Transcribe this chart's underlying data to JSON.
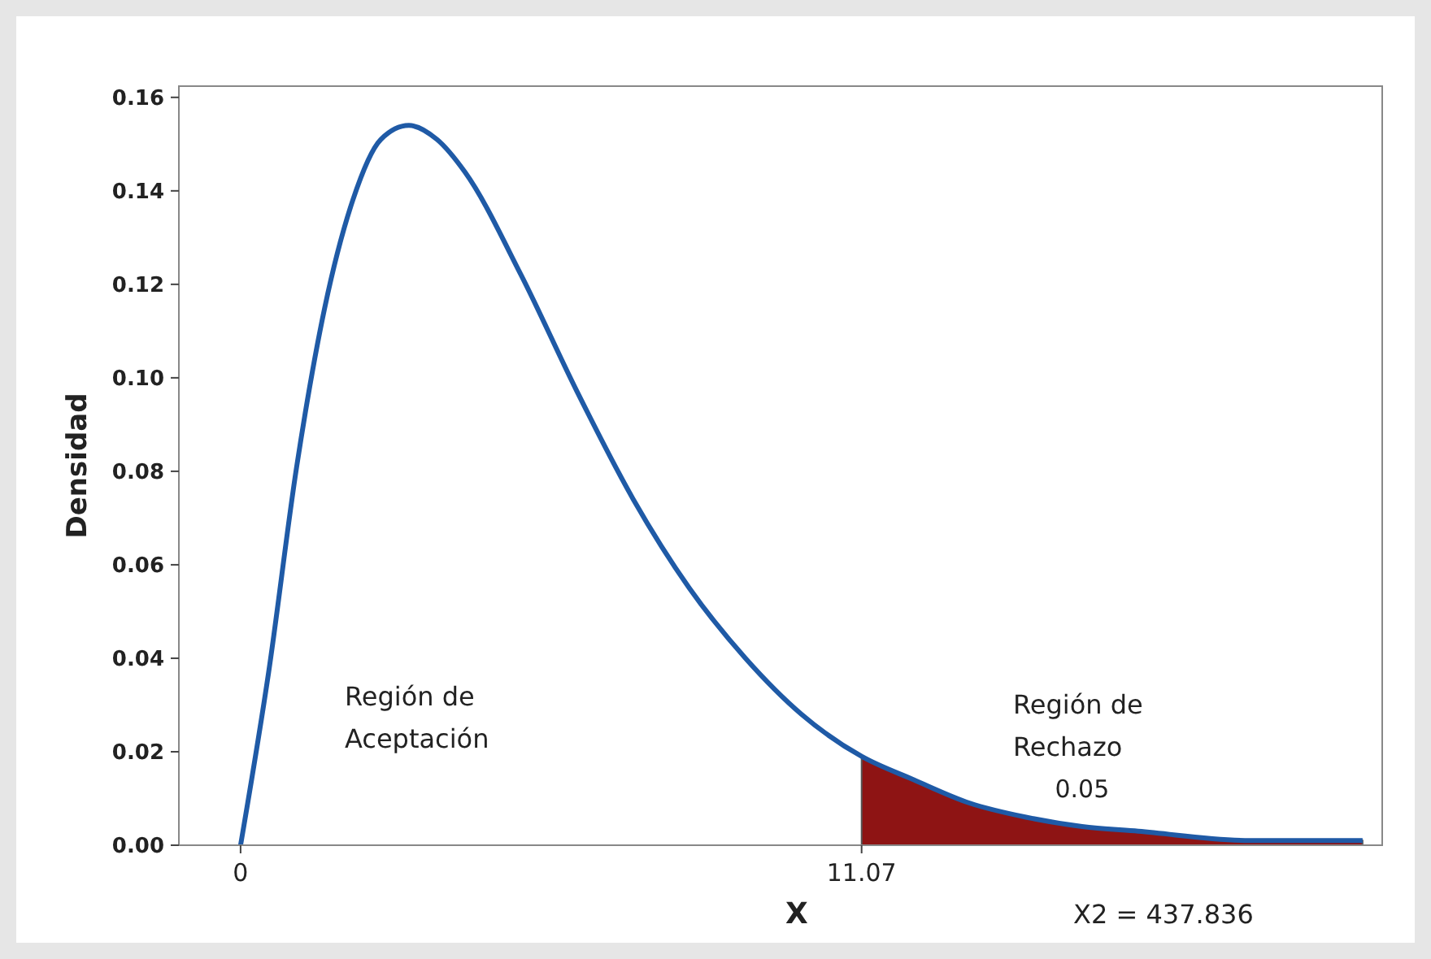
{
  "chart_data": {
    "type": "line",
    "xlabel": "X",
    "ylabel": "Densidad",
    "xlim": [
      -1.1,
      20.35
    ],
    "xticks": [
      0,
      11.07
    ],
    "ylim": [
      0,
      0.1624
    ],
    "yticks": [
      {
        "value": 0,
        "label": "0.00"
      },
      {
        "value": 0.02,
        "label": "0.02"
      },
      {
        "value": 0.04,
        "label": "0.04"
      },
      {
        "value": 0.06,
        "label": "0.06"
      },
      {
        "value": 0.08,
        "label": "0.08"
      },
      {
        "value": 0.1,
        "label": "0.10"
      },
      {
        "value": 0.12,
        "label": "0.12"
      },
      {
        "value": 0.14,
        "label": "0.14"
      },
      {
        "value": 0.16,
        "label": "0.16"
      }
    ],
    "grid": false,
    "marker": "none",
    "line_style": "solid",
    "series": [
      {
        "color": "#1f5aa6",
        "x": [
          0,
          0.5,
          1,
          1.5,
          2,
          2.5,
          3,
          3.5,
          4,
          5,
          6,
          7,
          8,
          9,
          10,
          11.07,
          12,
          13,
          14,
          15,
          16,
          18,
          20
        ],
        "values": [
          0,
          0.037,
          0.081,
          0.115,
          0.138,
          0.151,
          0.154,
          0.151,
          0.144,
          0.122,
          0.097,
          0.074,
          0.055,
          0.04,
          0.028,
          0.019,
          0.014,
          0.009,
          0.006,
          0.004,
          0.003,
          0.001,
          0.001
        ]
      },
      {
        "type": "area",
        "color": "#8e1414",
        "x": [
          11.07,
          12,
          13,
          14,
          15,
          16,
          18,
          20
        ],
        "values": [
          0.019,
          0.014,
          0.009,
          0.006,
          0.004,
          0.003,
          0.001,
          0.001
        ]
      }
    ],
    "annotations": [
      "Región de\nAceptación",
      "Región de\nRechazo",
      {
        "text": "0.05",
        "x": 15,
        "y": 0.004
      },
      "X2 = 437.836"
    ]
  }
}
